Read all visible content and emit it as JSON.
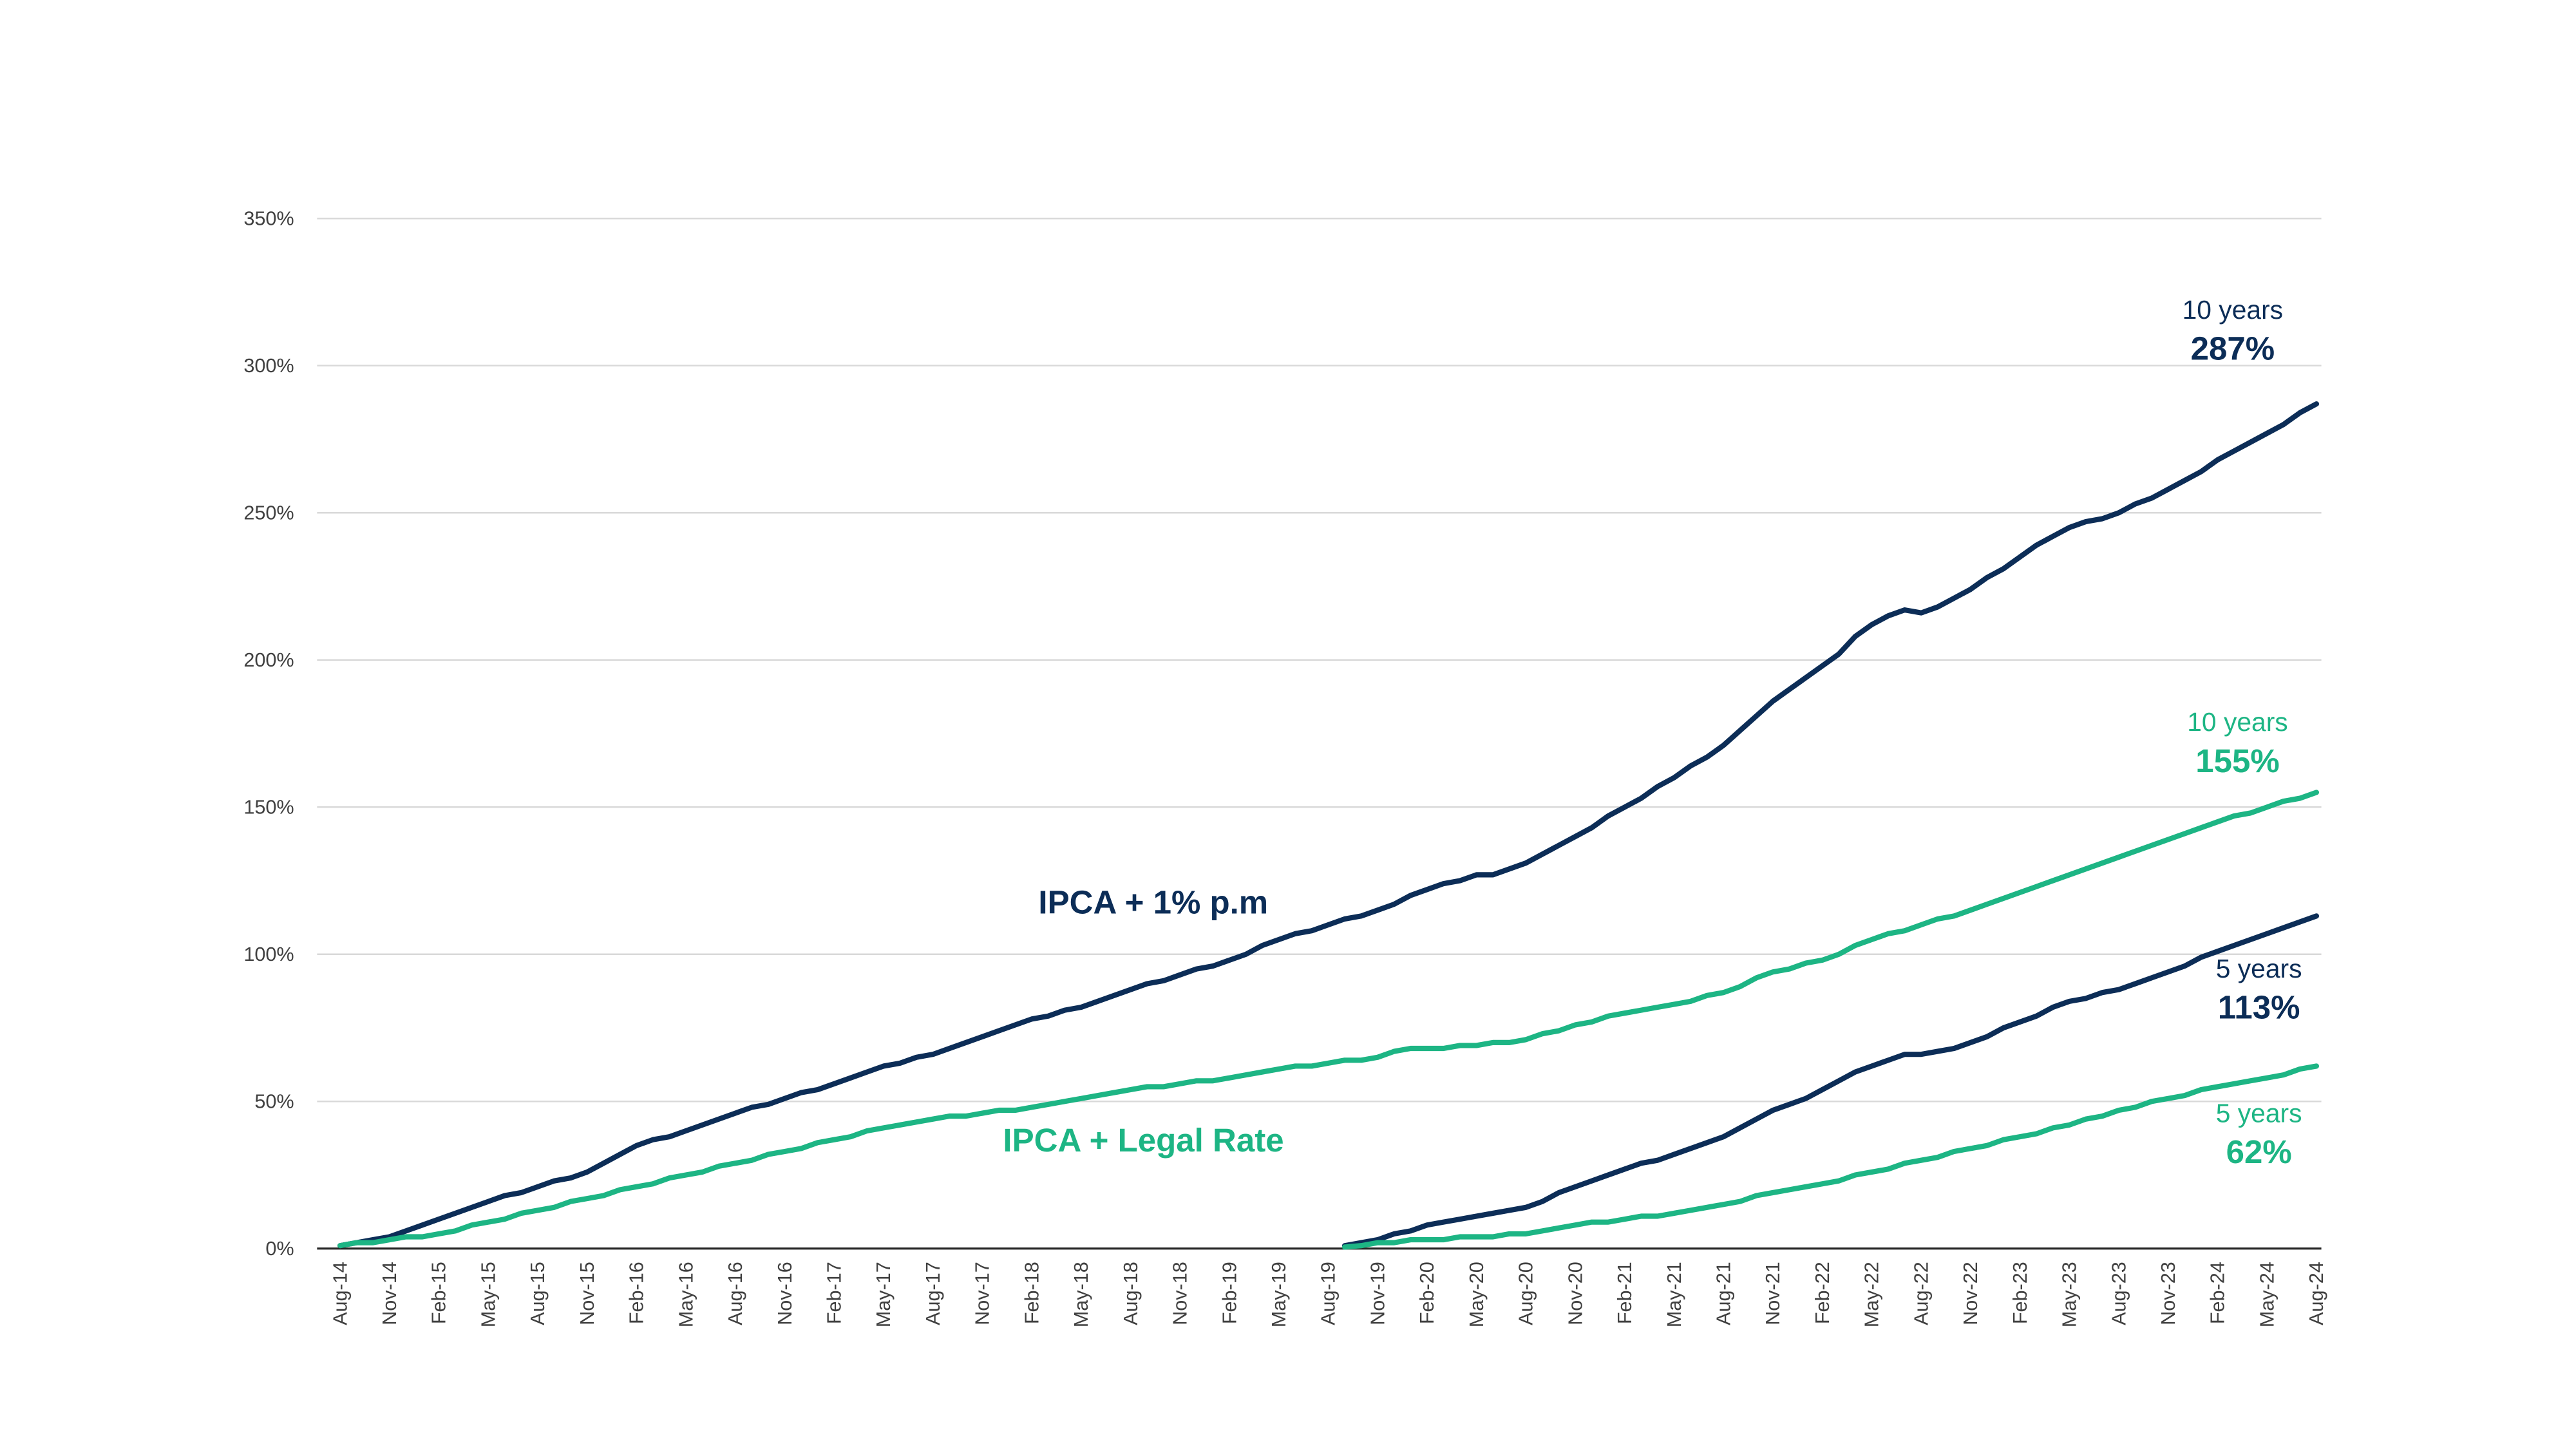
{
  "chart_data": {
    "type": "line",
    "categories": [
      "Aug-14",
      null,
      null,
      "Nov-14",
      null,
      null,
      "Feb-15",
      null,
      null,
      "May-15",
      null,
      null,
      "Aug-15",
      null,
      null,
      "Nov-15",
      null,
      null,
      "Feb-16",
      null,
      null,
      "May-16",
      null,
      null,
      "Aug-16",
      null,
      null,
      "Nov-16",
      null,
      null,
      "Feb-17",
      null,
      null,
      "May-17",
      null,
      null,
      "Aug-17",
      null,
      null,
      "Nov-17",
      null,
      null,
      "Feb-18",
      null,
      null,
      "May-18",
      null,
      null,
      "Aug-18",
      null,
      null,
      "Nov-18",
      null,
      null,
      "Feb-19",
      null,
      null,
      "May-19",
      null,
      null,
      "Aug-19",
      null,
      null,
      "Nov-19",
      null,
      null,
      "Feb-20",
      null,
      null,
      "May-20",
      null,
      null,
      "Aug-20",
      null,
      null,
      "Nov-20",
      null,
      null,
      "Feb-21",
      null,
      null,
      "May-21",
      null,
      null,
      "Aug-21",
      null,
      null,
      "Nov-21",
      null,
      null,
      "Feb-22",
      null,
      null,
      "May-22",
      null,
      null,
      "Aug-22",
      null,
      null,
      "Nov-22",
      null,
      null,
      "Feb-23",
      null,
      null,
      "May-23",
      null,
      null,
      "Aug-23",
      null,
      null,
      "Nov-23",
      null,
      null,
      "Feb-24",
      null,
      null,
      "May-24",
      null,
      null,
      "Aug-24"
    ],
    "series": [
      {
        "name": "IPCA + 1% p.m",
        "color": "#0c2d57",
        "annotation": "10 years",
        "end_label": "287%",
        "values": [
          1,
          2,
          3,
          4,
          6,
          8,
          10,
          12,
          14,
          16,
          18,
          19,
          21,
          23,
          24,
          26,
          29,
          32,
          35,
          37,
          38,
          40,
          42,
          44,
          46,
          48,
          49,
          51,
          53,
          54,
          56,
          58,
          60,
          62,
          63,
          65,
          66,
          68,
          70,
          72,
          74,
          76,
          78,
          79,
          81,
          82,
          84,
          86,
          88,
          90,
          91,
          93,
          95,
          96,
          98,
          100,
          103,
          105,
          107,
          108,
          110,
          112,
          113,
          115,
          117,
          120,
          122,
          124,
          125,
          127,
          127,
          129,
          131,
          134,
          137,
          140,
          143,
          147,
          150,
          153,
          157,
          160,
          164,
          167,
          171,
          176,
          181,
          186,
          190,
          194,
          198,
          202,
          208,
          212,
          215,
          217,
          216,
          218,
          221,
          224,
          228,
          231,
          235,
          239,
          242,
          245,
          247,
          248,
          250,
          253,
          255,
          258,
          261,
          264,
          268,
          271,
          274,
          277,
          280,
          284,
          287
        ]
      },
      {
        "name": "IPCA + Legal Rate",
        "color": "#1db584",
        "annotation": "10 years",
        "end_label": "155%",
        "values": [
          1,
          2,
          2,
          3,
          4,
          4,
          5,
          6,
          8,
          9,
          10,
          12,
          13,
          14,
          16,
          17,
          18,
          20,
          21,
          22,
          24,
          25,
          26,
          28,
          29,
          30,
          32,
          33,
          34,
          36,
          37,
          38,
          40,
          41,
          42,
          43,
          44,
          45,
          45,
          46,
          47,
          47,
          48,
          49,
          50,
          51,
          52,
          53,
          54,
          55,
          55,
          56,
          57,
          57,
          58,
          59,
          60,
          61,
          62,
          62,
          63,
          64,
          64,
          65,
          67,
          68,
          68,
          68,
          69,
          69,
          70,
          70,
          71,
          73,
          74,
          76,
          77,
          79,
          80,
          81,
          82,
          83,
          84,
          86,
          87,
          89,
          92,
          94,
          95,
          97,
          98,
          100,
          103,
          105,
          107,
          108,
          110,
          112,
          113,
          115,
          117,
          119,
          121,
          123,
          125,
          127,
          129,
          131,
          133,
          135,
          137,
          139,
          141,
          143,
          145,
          147,
          148,
          150,
          152,
          153,
          155
        ]
      },
      {
        "color": "#0c2d57",
        "annotation": "5 years",
        "end_label": "113%",
        "values": [
          null,
          null,
          null,
          null,
          null,
          null,
          null,
          null,
          null,
          null,
          null,
          null,
          null,
          null,
          null,
          null,
          null,
          null,
          null,
          null,
          null,
          null,
          null,
          null,
          null,
          null,
          null,
          null,
          null,
          null,
          null,
          null,
          null,
          null,
          null,
          null,
          null,
          null,
          null,
          null,
          null,
          null,
          null,
          null,
          null,
          null,
          null,
          null,
          null,
          null,
          null,
          null,
          null,
          null,
          null,
          null,
          null,
          null,
          null,
          null,
          null,
          1,
          2,
          3,
          5,
          6,
          8,
          9,
          10,
          11,
          12,
          13,
          14,
          16,
          19,
          21,
          23,
          25,
          27,
          29,
          30,
          32,
          34,
          36,
          38,
          41,
          44,
          47,
          49,
          51,
          54,
          57,
          60,
          62,
          64,
          66,
          66,
          67,
          68,
          70,
          72,
          75,
          77,
          79,
          82,
          84,
          85,
          87,
          88,
          90,
          92,
          94,
          96,
          99,
          101,
          103,
          105,
          107,
          109,
          111,
          113
        ]
      },
      {
        "color": "#1db584",
        "annotation": "5 years",
        "end_label": "62%",
        "values": [
          null,
          null,
          null,
          null,
          null,
          null,
          null,
          null,
          null,
          null,
          null,
          null,
          null,
          null,
          null,
          null,
          null,
          null,
          null,
          null,
          null,
          null,
          null,
          null,
          null,
          null,
          null,
          null,
          null,
          null,
          null,
          null,
          null,
          null,
          null,
          null,
          null,
          null,
          null,
          null,
          null,
          null,
          null,
          null,
          null,
          null,
          null,
          null,
          null,
          null,
          null,
          null,
          null,
          null,
          null,
          null,
          null,
          null,
          null,
          null,
          null,
          0.5,
          1,
          2,
          2,
          3,
          3,
          3,
          4,
          4,
          4,
          5,
          5,
          6,
          7,
          8,
          9,
          9,
          10,
          11,
          11,
          12,
          13,
          14,
          15,
          16,
          18,
          19,
          20,
          21,
          22,
          23,
          25,
          26,
          27,
          29,
          30,
          31,
          33,
          34,
          35,
          37,
          38,
          39,
          41,
          42,
          44,
          45,
          47,
          48,
          50,
          51,
          52,
          54,
          55,
          56,
          57,
          58,
          59,
          61,
          62
        ]
      }
    ],
    "ylim": [
      0,
      350
    ],
    "yticks": [
      {
        "value": 0,
        "label": "0%"
      },
      {
        "value": 50,
        "label": "50%"
      },
      {
        "value": 100,
        "label": "100%"
      },
      {
        "value": 150,
        "label": "150%"
      },
      {
        "value": 200,
        "label": "200%"
      },
      {
        "value": 250,
        "label": "250%"
      },
      {
        "value": 300,
        "label": "300%"
      },
      {
        "value": 350,
        "label": "350%"
      }
    ],
    "grid": true
  }
}
